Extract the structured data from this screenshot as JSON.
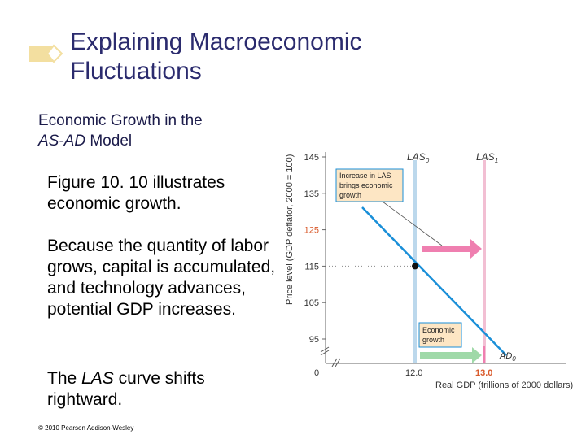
{
  "slide": {
    "title_line1": "Explaining Macroeconomic",
    "title_line2": "Fluctuations",
    "subtitle_line1": "Economic Growth in the",
    "subtitle_line2_italic": "AS-AD",
    "subtitle_line2_rest": " Model",
    "para1": "Figure 10. 10 illustrates economic growth.",
    "para2": "Because the quantity of labor grows, capital is accumulated, and technology advances, potential GDP increases.",
    "para3_pre": "The ",
    "para3_italic": "LAS",
    "para3_post": " curve shifts rightward.",
    "copyright": "© 2010 Pearson Addison-Wesley",
    "accent_color": "#f3dfa0",
    "title_color": "#2b2b6e"
  },
  "figure": {
    "ylabel": "Price level (GDP deflator, 2000 = 100)",
    "xlabel": "Real GDP (trillions of 2000 dollars)",
    "y_ticks": [
      "145",
      "135",
      "125",
      "115",
      "105",
      "95"
    ],
    "origin_label": "0",
    "x_ticks": [
      "12.0",
      "13.0"
    ],
    "las0_label": "LAS",
    "las0_sub": "0",
    "las1_label": "LAS",
    "las1_sub": "1",
    "ad_label": "AD",
    "ad_sub": "0",
    "callout1_line1": "Increase in LAS",
    "callout1_line2": "brings economic",
    "callout1_line3": "growth",
    "callout2_line1": "Economic",
    "callout2_line2": "growth",
    "colors": {
      "las0": "#bcd8ec",
      "las1": "#f2bfd3",
      "ad": "#1a8fd8",
      "arrow": "#ef7fb0",
      "arrow_green": "#9fd9a8",
      "callout_fill": "#fde6c4",
      "callout_border": "#1a8fd8",
      "tick_125": "#d95a2b"
    }
  },
  "chart_data": {
    "type": "line",
    "ylim": [
      90,
      145
    ],
    "yticks": [
      95,
      105,
      115,
      125,
      135,
      145
    ],
    "xticks": [
      12.0,
      13.0
    ],
    "series": [
      {
        "name": "LAS0",
        "x": [
          12.0,
          12.0
        ],
        "y": [
          90,
          145
        ]
      },
      {
        "name": "LAS1",
        "x": [
          13.0,
          13.0
        ],
        "y": [
          90,
          145
        ]
      },
      {
        "name": "AD0",
        "x": [
          11.4,
          12.0,
          12.9
        ],
        "y": [
          133,
          115,
          95
        ]
      }
    ],
    "equilibrium": {
      "x": 12.0,
      "y": 115
    }
  }
}
